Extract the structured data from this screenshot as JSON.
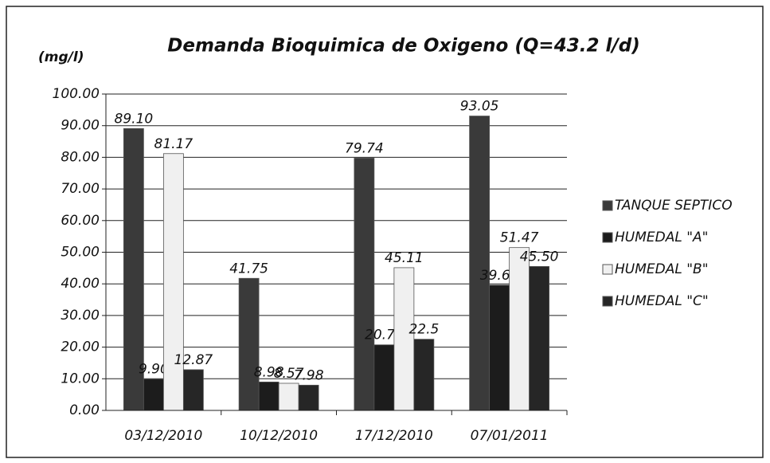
{
  "chart_data": {
    "type": "bar",
    "title": "Demanda Bioquimica de Oxigeno  (Q=43.2 l/d)",
    "y_label": "(mg/l)",
    "categories": [
      "03/12/2010",
      "10/12/2010",
      "17/12/2010",
      "07/01/2011"
    ],
    "series": [
      {
        "name": "TANQUE SEPTICO",
        "color": "#3a3a3a",
        "values": [
          89.1,
          41.75,
          79.74,
          93.05
        ],
        "value_labels": [
          "89.10",
          "41.75",
          "79.74",
          "93.05"
        ]
      },
      {
        "name": "HUMEDAL \"A\"",
        "color": "#1c1c1c",
        "values": [
          9.9,
          8.98,
          20.72,
          39.6
        ],
        "value_labels": [
          "9.90",
          "8.98",
          "20.72",
          "39.60"
        ]
      },
      {
        "name": "HUMEDAL \"B\"",
        "color": "#f0f0f0",
        "values": [
          81.17,
          8.57,
          45.11,
          51.47
        ],
        "value_labels": [
          "81.17",
          "8.57",
          "45.11",
          "51.47"
        ]
      },
      {
        "name": "HUMEDAL \"C\"",
        "color": "#262626",
        "values": [
          12.87,
          7.98,
          22.5,
          45.5
        ],
        "value_labels": [
          "12.87",
          "7.98",
          "22.5",
          "45.50"
        ]
      }
    ],
    "ylim": [
      0,
      100
    ],
    "yticks": [
      {
        "value": 0,
        "label": "0.00"
      },
      {
        "value": 10,
        "label": "10.00"
      },
      {
        "value": 20,
        "label": "20.00"
      },
      {
        "value": 30,
        "label": "30.00"
      },
      {
        "value": 40,
        "label": "40.00"
      },
      {
        "value": 50,
        "label": "50.00"
      },
      {
        "value": 60,
        "label": "60.00"
      },
      {
        "value": 70,
        "label": "70.00"
      },
      {
        "value": 80,
        "label": "80.00"
      },
      {
        "value": 90,
        "label": "90.00"
      },
      {
        "value": 100,
        "label": "100.00"
      }
    ],
    "grid": true,
    "legend": "right"
  }
}
